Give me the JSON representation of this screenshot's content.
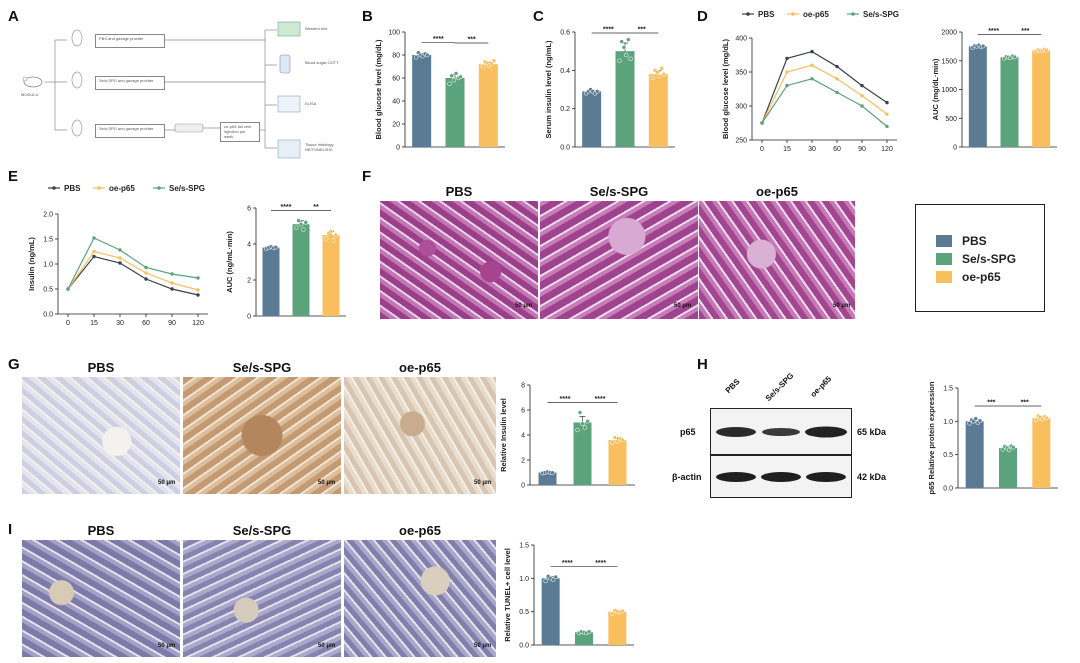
{
  "panel_labels": [
    "A",
    "B",
    "C",
    "D",
    "E",
    "F",
    "G",
    "H",
    "I"
  ],
  "colors": {
    "PBS": "#5b7b95",
    "Se/s-SPG": "#5ba37a",
    "oe-p65": "#f9bf5e"
  },
  "groups": [
    "PBS",
    "Se/s-SPG",
    "oe-p65"
  ],
  "panel_a": {
    "mouse_label": "MODULU",
    "steps": [
      "PBS and gavage proxiter",
      "Se/s-SPG and gavage proxiter",
      "Se/s-SPG and gavage proxiter",
      "oe-p65 tail vein injection per week"
    ],
    "outcomes": [
      "Western blot",
      "Blood sugar OGTT",
      "ELISA",
      "Tissue histology HE/TUNEL/IHC"
    ]
  },
  "image_titles": {
    "F": [
      "PBS",
      "Se/s-SPG",
      "oe-p65"
    ],
    "G": [
      "PBS",
      "Se/s-SPG",
      "oe-p65"
    ],
    "I": [
      "PBS",
      "Se/s-SPG",
      "oe-p65"
    ]
  },
  "scale_bar": "50 μm",
  "legend": [
    {
      "name": "PBS",
      "color": "#5b7b95"
    },
    {
      "name": "Se/s-SPG",
      "color": "#5ba37a"
    },
    {
      "name": "oe-p65",
      "color": "#f9bf5e"
    }
  ],
  "western_blot": {
    "columns": [
      "PBS",
      "Se/s-SPG",
      "oe-p65"
    ],
    "rows": [
      {
        "name": "p65",
        "size": "65 kDa"
      },
      {
        "name": "β-actin",
        "size": "42 kDa"
      }
    ]
  },
  "chart_data": [
    {
      "id": "B",
      "type": "bar",
      "categories": [
        "PBS",
        "Se/s-SPG",
        "oe-p65"
      ],
      "values": [
        80,
        60,
        72
      ],
      "points": [
        [
          78,
          82,
          80,
          79,
          81,
          80
        ],
        [
          55,
          62,
          58,
          64,
          60,
          61
        ],
        [
          70,
          74,
          73,
          71,
          72,
          75
        ]
      ],
      "ylabel": "Blood glucose level (mg/dL)",
      "ylim": [
        0,
        100
      ],
      "yticks": [
        0,
        20,
        40,
        60,
        80,
        100
      ],
      "significance": [
        {
          "from": 0,
          "to": 1,
          "label": "****"
        },
        {
          "from": 1,
          "to": 2,
          "label": "***"
        }
      ]
    },
    {
      "id": "C",
      "type": "bar",
      "categories": [
        "PBS",
        "Se/s-SPG",
        "oe-p65"
      ],
      "values": [
        0.29,
        0.5,
        0.38
      ],
      "points": [
        [
          0.28,
          0.29,
          0.3,
          0.29,
          0.28,
          0.29
        ],
        [
          0.45,
          0.55,
          0.52,
          0.48,
          0.56,
          0.46
        ],
        [
          0.36,
          0.4,
          0.39,
          0.37,
          0.41,
          0.38
        ]
      ],
      "ylabel": "Serum insulin level (ng/mL)",
      "ylim": [
        0,
        0.6
      ],
      "yticks": [
        0.0,
        0.2,
        0.4,
        0.6
      ],
      "significance": [
        {
          "from": 0,
          "to": 1,
          "label": "****"
        },
        {
          "from": 1,
          "to": 2,
          "label": "***"
        }
      ]
    },
    {
      "id": "D",
      "type": "line",
      "x": [
        0,
        15,
        30,
        60,
        90,
        120
      ],
      "series": [
        {
          "name": "PBS",
          "values": [
            275,
            370,
            380,
            358,
            330,
            305
          ]
        },
        {
          "name": "oe-p65",
          "values": [
            275,
            350,
            360,
            340,
            315,
            288
          ]
        },
        {
          "name": "Se/s-SPG",
          "values": [
            275,
            330,
            340,
            320,
            300,
            270
          ]
        }
      ],
      "ylabel": "Blood glucose level (mg/dL)",
      "ylim": [
        250,
        400
      ],
      "yticks": [
        250,
        300,
        350,
        400
      ],
      "legend_order": [
        "PBS",
        "oe-p65",
        "Se/s-SPG"
      ]
    },
    {
      "id": "D-AUC",
      "type": "bar",
      "categories": [
        "PBS",
        "Se/s-SPG",
        "oe-p65"
      ],
      "values": [
        1750,
        1560,
        1680
      ],
      "points": [
        [
          1730,
          1760,
          1750,
          1770,
          1740,
          1755
        ],
        [
          1540,
          1570,
          1560,
          1550,
          1580,
          1565
        ],
        [
          1660,
          1690,
          1680,
          1670,
          1700,
          1685
        ]
      ],
      "ylabel": "AUC (mg/dL·min)",
      "ylim": [
        0,
        2000
      ],
      "yticks": [
        0,
        500,
        1000,
        1500,
        2000
      ],
      "significance": [
        {
          "from": 0,
          "to": 1,
          "label": "****"
        },
        {
          "from": 1,
          "to": 2,
          "label": "***"
        }
      ]
    },
    {
      "id": "E",
      "type": "line",
      "x": [
        0,
        15,
        30,
        60,
        90,
        120
      ],
      "series": [
        {
          "name": "PBS",
          "values": [
            0.5,
            1.15,
            1.02,
            0.7,
            0.5,
            0.38
          ]
        },
        {
          "name": "oe-p65",
          "values": [
            0.5,
            1.25,
            1.12,
            0.82,
            0.62,
            0.48
          ]
        },
        {
          "name": "Se/s-SPG",
          "values": [
            0.5,
            1.52,
            1.28,
            0.93,
            0.8,
            0.72
          ]
        }
      ],
      "ylabel": "Insulin (ng/mL)",
      "ylim": [
        0,
        2.0
      ],
      "yticks": [
        0.0,
        0.5,
        1.0,
        1.5,
        2.0
      ],
      "legend_order": [
        "PBS",
        "oe-p65",
        "Se/s-SPG"
      ]
    },
    {
      "id": "E-AUC",
      "type": "bar",
      "categories": [
        "PBS",
        "Se/s-SPG",
        "oe-p65"
      ],
      "values": [
        3.8,
        5.1,
        4.5
      ],
      "points": [
        [
          3.75,
          3.8,
          3.85,
          3.78,
          3.82
        ],
        [
          4.9,
          5.3,
          5.1,
          4.8,
          5.2
        ],
        [
          4.3,
          4.6,
          4.7,
          4.2,
          4.5
        ]
      ],
      "ylabel": "AUC (ng/mL·min)",
      "ylim": [
        0,
        6
      ],
      "yticks": [
        0,
        2,
        4,
        6
      ],
      "significance": [
        {
          "from": 0,
          "to": 1,
          "label": "****"
        },
        {
          "from": 1,
          "to": 2,
          "label": "**"
        }
      ]
    },
    {
      "id": "G",
      "type": "bar",
      "categories": [
        "PBS",
        "Se/s-SPG",
        "oe-p65"
      ],
      "values": [
        1.0,
        5.0,
        3.6
      ],
      "points": [
        [
          0.95,
          1.0,
          1.05,
          1.0,
          0.98
        ],
        [
          4.4,
          5.8,
          4.9,
          4.6,
          5.1
        ],
        [
          3.4,
          3.8,
          3.5,
          3.7,
          3.6
        ]
      ],
      "ylabel": "Relative Insulin level",
      "ylim": [
        0,
        8
      ],
      "yticks": [
        0,
        2,
        4,
        6,
        8
      ],
      "significance": [
        {
          "from": 0,
          "to": 1,
          "label": "****"
        },
        {
          "from": 1,
          "to": 2,
          "label": "****"
        }
      ]
    },
    {
      "id": "H",
      "type": "bar",
      "categories": [
        "PBS",
        "Se/s-SPG",
        "oe-p65"
      ],
      "values": [
        1.0,
        0.6,
        1.05
      ],
      "points": [
        [
          0.97,
          1.02,
          1.0,
          1.04,
          0.98,
          1.01
        ],
        [
          0.58,
          0.62,
          0.6,
          0.57,
          0.63,
          0.61
        ],
        [
          1.02,
          1.08,
          1.06,
          1.03,
          1.07,
          1.05
        ]
      ],
      "ylabel": "p65 Relative protein expression",
      "ylim": [
        0,
        1.5
      ],
      "yticks": [
        0.0,
        0.5,
        1.0,
        1.5
      ],
      "significance": [
        {
          "from": 0,
          "to": 1,
          "label": "***"
        },
        {
          "from": 1,
          "to": 2,
          "label": "***"
        }
      ]
    },
    {
      "id": "I",
      "type": "bar",
      "categories": [
        "PBS",
        "Se/s-SPG",
        "oe-p65"
      ],
      "values": [
        1.0,
        0.19,
        0.5
      ],
      "points": [
        [
          0.96,
          1.03,
          1.0,
          0.98,
          1.02
        ],
        [
          0.18,
          0.2,
          0.19,
          0.18,
          0.2
        ],
        [
          0.47,
          0.52,
          0.5,
          0.49,
          0.51
        ]
      ],
      "ylabel": "Relative TUNEL+ cell level",
      "ylim": [
        0,
        1.5
      ],
      "yticks": [
        0.0,
        0.5,
        1.0,
        1.5
      ],
      "significance": [
        {
          "from": 0,
          "to": 1,
          "label": "****"
        },
        {
          "from": 1,
          "to": 2,
          "label": "****"
        }
      ]
    }
  ]
}
